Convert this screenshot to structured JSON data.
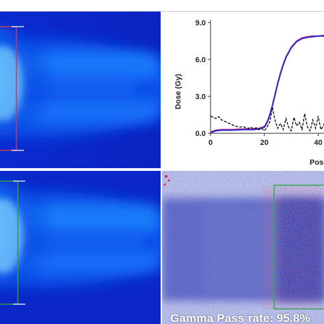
{
  "chart_data": {
    "type": "line",
    "xlabel": "Posi",
    "ylabel": "Dose (Gy)",
    "x_ticks": [
      "0",
      "20",
      "40"
    ],
    "y_ticks": [
      "0.0",
      "3.0",
      "6.0",
      "9.0"
    ],
    "xlim": [
      0,
      48
    ],
    "ylim": [
      0,
      9
    ],
    "series": [
      {
        "color": "#d4266a",
        "style": "solid",
        "x": [
          0,
          2,
          4,
          8,
          12,
          16,
          18,
          20,
          21,
          22,
          23,
          24,
          25,
          26,
          27,
          28,
          30,
          32,
          34,
          36,
          38,
          40,
          42,
          44,
          46,
          48
        ],
        "y": [
          0.1,
          0.25,
          0.3,
          0.3,
          0.35,
          0.35,
          0.4,
          0.55,
          0.9,
          1.5,
          2.3,
          3.2,
          4.1,
          4.9,
          5.6,
          6.2,
          7.0,
          7.5,
          7.75,
          7.85,
          7.9,
          7.9,
          7.95,
          7.95,
          8.0,
          8.0
        ]
      },
      {
        "color": "#2a2ad4",
        "style": "solid",
        "x": [
          0,
          2,
          4,
          8,
          12,
          16,
          18,
          20,
          21,
          22,
          23,
          24,
          25,
          26,
          27,
          28,
          30,
          32,
          34,
          36,
          38,
          40,
          42,
          44,
          46,
          48
        ],
        "y": [
          0.05,
          0.2,
          0.25,
          0.25,
          0.3,
          0.3,
          0.35,
          0.5,
          0.85,
          1.45,
          2.25,
          3.15,
          4.05,
          4.85,
          5.55,
          6.15,
          6.95,
          7.45,
          7.7,
          7.8,
          7.85,
          7.9,
          7.9,
          7.95,
          7.95,
          7.95
        ]
      },
      {
        "color": "#000000",
        "style": "dashed",
        "x": [
          0,
          1,
          2,
          3,
          4,
          5,
          6,
          7,
          8,
          9,
          10,
          11,
          12,
          13,
          14,
          15,
          16,
          17,
          18,
          19,
          20,
          21,
          22,
          23,
          24,
          25,
          26,
          27,
          28,
          29,
          30,
          31,
          32,
          33,
          34,
          35,
          36,
          37,
          38,
          39,
          40,
          41,
          42,
          43,
          44,
          45,
          46,
          47,
          48
        ],
        "y": [
          1.4,
          1.3,
          1.2,
          1.35,
          1.1,
          1.0,
          0.9,
          0.8,
          0.7,
          0.6,
          0.55,
          0.5,
          0.55,
          0.45,
          0.4,
          0.5,
          0.35,
          0.45,
          0.3,
          0.4,
          0.2,
          0.5,
          0.9,
          2.1,
          1.0,
          0.4,
          0.8,
          0.3,
          1.2,
          0.5,
          0.2,
          1.3,
          0.6,
          0.9,
          0.3,
          1.6,
          0.5,
          0.2,
          1.1,
          0.4,
          1.4,
          0.3,
          0.6,
          1.5,
          0.2,
          0.9,
          0.5,
          1.8,
          0.4
        ]
      }
    ]
  },
  "gamma": {
    "label": "Gamma Pass rate:",
    "value": "95.8%"
  }
}
